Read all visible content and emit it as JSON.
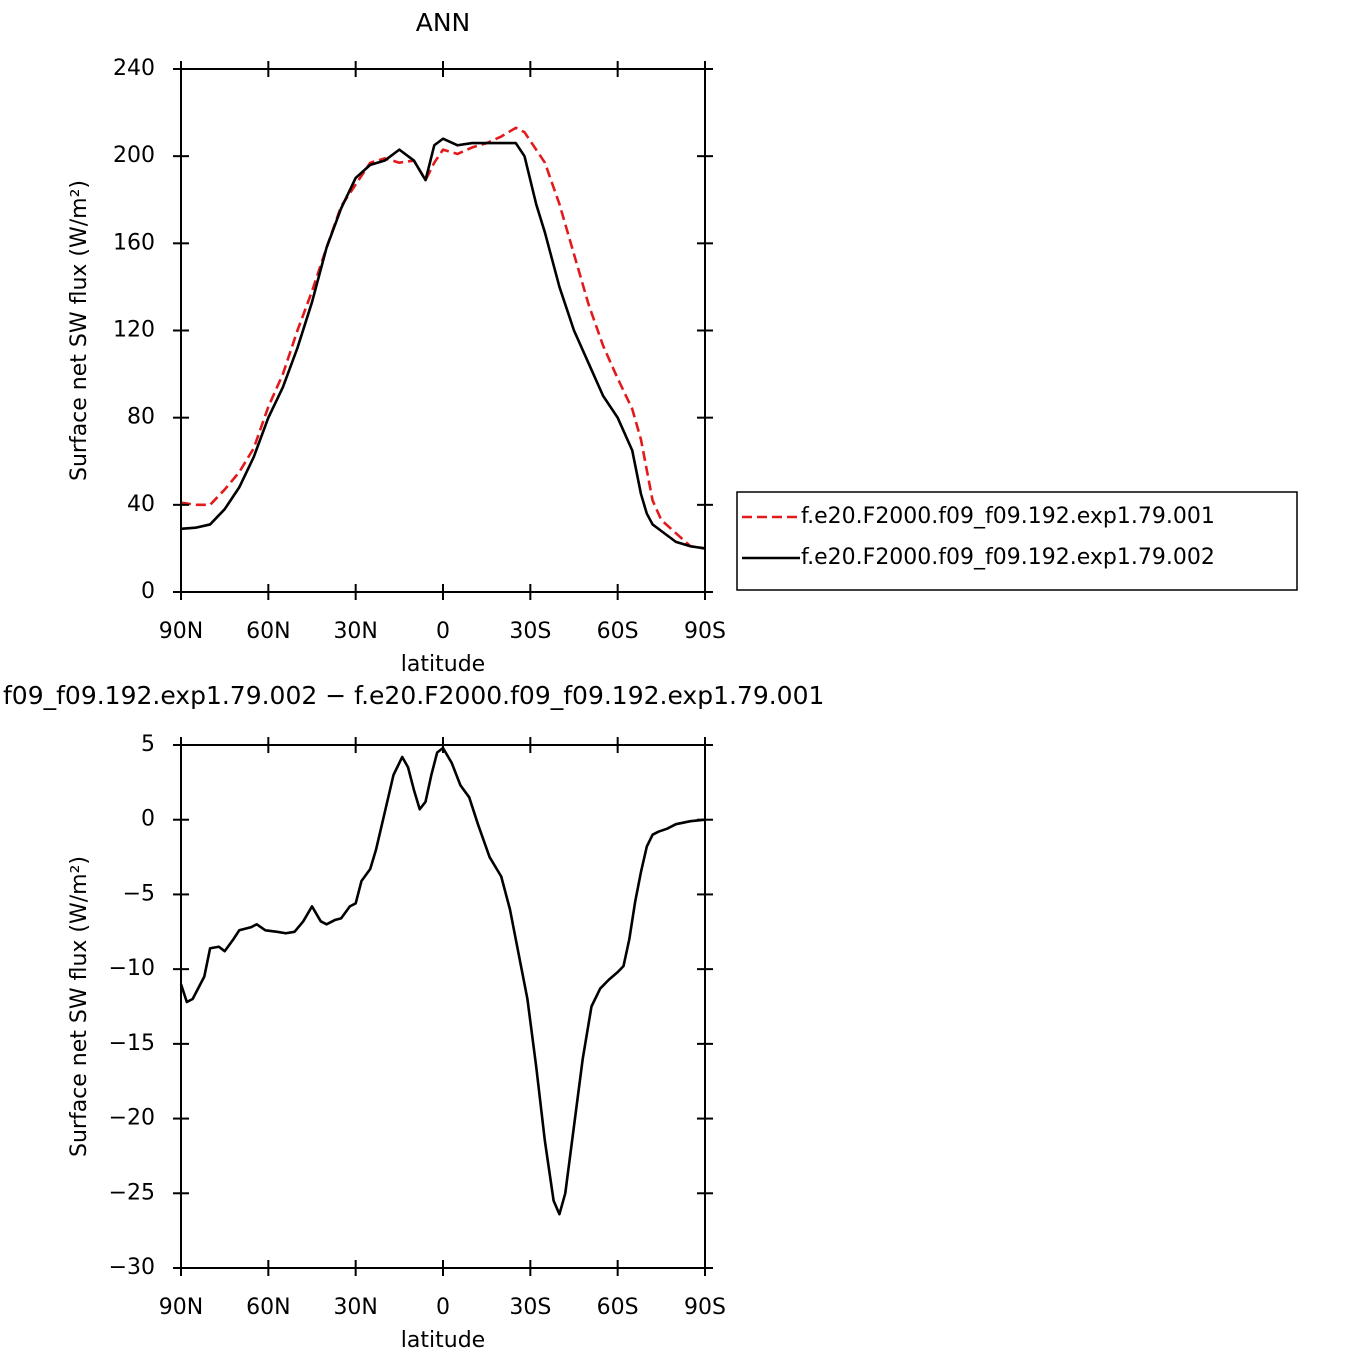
{
  "chart_data": [
    {
      "type": "line",
      "title": "ANN",
      "xlabel": "latitude",
      "ylabel": "Surface net SW flux (W/m²)",
      "x": [
        90,
        85,
        80,
        75,
        70,
        65,
        60,
        55,
        50,
        45,
        40,
        35,
        30,
        25,
        20,
        15,
        10,
        6,
        3,
        0,
        -5,
        -10,
        -15,
        -20,
        -25,
        -28,
        -32,
        -35,
        -40,
        -45,
        -50,
        -55,
        -60,
        -65,
        -68,
        -70,
        -72,
        -75,
        -80,
        -85,
        -90
      ],
      "series": [
        {
          "name": "f.e20.F2000.f09_f09.192.exp1.79.001",
          "color": "#e31a1c",
          "dash": "dashed",
          "values": [
            41,
            40,
            40,
            47,
            55,
            66,
            85,
            100,
            120,
            138,
            158,
            177,
            187,
            197,
            199,
            197,
            198,
            189,
            197,
            203,
            201,
            204,
            206,
            209,
            213,
            211,
            203,
            197,
            178,
            155,
            132,
            113,
            98,
            84,
            70,
            56,
            42,
            33,
            27,
            21,
            20
          ]
        },
        {
          "name": "f.e20.F2000.f09_f09.192.exp1.79.002",
          "color": "#000000",
          "dash": "solid",
          "values": [
            29,
            29.5,
            31,
            38,
            48,
            62,
            80,
            94,
            112,
            133,
            158,
            176,
            190,
            196,
            198,
            203,
            198,
            189,
            205,
            208,
            205,
            206,
            206,
            206,
            206,
            200,
            178,
            165,
            140,
            120,
            105,
            90,
            80,
            65,
            45,
            36,
            31,
            28,
            23,
            21,
            20
          ]
        }
      ],
      "xlim": [
        90,
        -90
      ],
      "xticks": [
        {
          "value": 90,
          "label": "90N"
        },
        {
          "value": 60,
          "label": "60N"
        },
        {
          "value": 30,
          "label": "30N"
        },
        0,
        {
          "value": -30,
          "label": "30S"
        },
        {
          "value": -60,
          "label": "60S"
        },
        {
          "value": -90,
          "label": "90S"
        }
      ],
      "ylim": [
        0,
        240
      ],
      "yticks": [
        0,
        40,
        80,
        120,
        160,
        200,
        240
      ],
      "grid": false,
      "legend": "right"
    },
    {
      "type": "line",
      "title": "f09_f09.192.exp1.79.002 − f.e20.F2000.f09_f09.192.exp1.79.001",
      "xlabel": "latitude",
      "ylabel": "Surface net SW flux (W/m²)",
      "x": [
        90,
        88,
        86,
        82,
        80,
        77,
        75,
        72,
        70,
        66,
        64,
        61,
        57,
        54,
        51,
        48,
        45,
        42,
        40,
        37,
        35,
        32,
        30,
        28,
        25,
        23,
        20,
        17,
        14,
        12,
        10,
        8,
        6,
        4,
        2,
        0,
        -3,
        -6,
        -9,
        -12,
        -16,
        -20,
        -23,
        -26,
        -29,
        -32,
        -35,
        -38,
        -40,
        -42,
        -45,
        -48,
        -51,
        -54,
        -57,
        -60,
        -62,
        -64,
        -66,
        -68,
        -70,
        -72,
        -74,
        -77,
        -80,
        -85,
        -90
      ],
      "series": [
        {
          "color": "#000000",
          "dash": "solid",
          "values": [
            -11,
            -12.2,
            -12,
            -10.5,
            -8.6,
            -8.5,
            -8.8,
            -8,
            -7.4,
            -7.2,
            -7,
            -7.4,
            -7.5,
            -7.6,
            -7.5,
            -6.8,
            -5.8,
            -6.8,
            -7,
            -6.7,
            -6.6,
            -5.8,
            -5.6,
            -4.1,
            -3.3,
            -2,
            0.5,
            3,
            4.2,
            3.5,
            2,
            0.7,
            1.2,
            3,
            4.5,
            4.8,
            3.8,
            2.3,
            1.5,
            -0.3,
            -2.5,
            -3.8,
            -6,
            -9,
            -12,
            -16.5,
            -21.5,
            -25.5,
            -26.4,
            -25,
            -20.5,
            -16,
            -12.5,
            -11.3,
            -10.7,
            -10.2,
            -9.8,
            -8,
            -5.5,
            -3.5,
            -1.8,
            -1,
            -0.8,
            -0.6,
            -0.3,
            -0.1,
            0
          ]
        }
      ],
      "xlim": [
        90,
        -90
      ],
      "xticks": [
        {
          "value": 90,
          "label": "90N"
        },
        {
          "value": 60,
          "label": "60N"
        },
        {
          "value": 30,
          "label": "30N"
        },
        0,
        {
          "value": -30,
          "label": "30S"
        },
        {
          "value": -60,
          "label": "60S"
        },
        {
          "value": -90,
          "label": "90S"
        }
      ],
      "ylim": [
        -30,
        5
      ],
      "yticks": [
        5,
        0,
        {
          "value": -5,
          "label": "−5"
        },
        {
          "value": -10,
          "label": "−10"
        },
        {
          "value": -15,
          "label": "−15"
        },
        {
          "value": -20,
          "label": "−20"
        },
        {
          "value": -25,
          "label": "−25"
        },
        {
          "value": -30,
          "label": "−30"
        }
      ],
      "grid": false
    }
  ]
}
